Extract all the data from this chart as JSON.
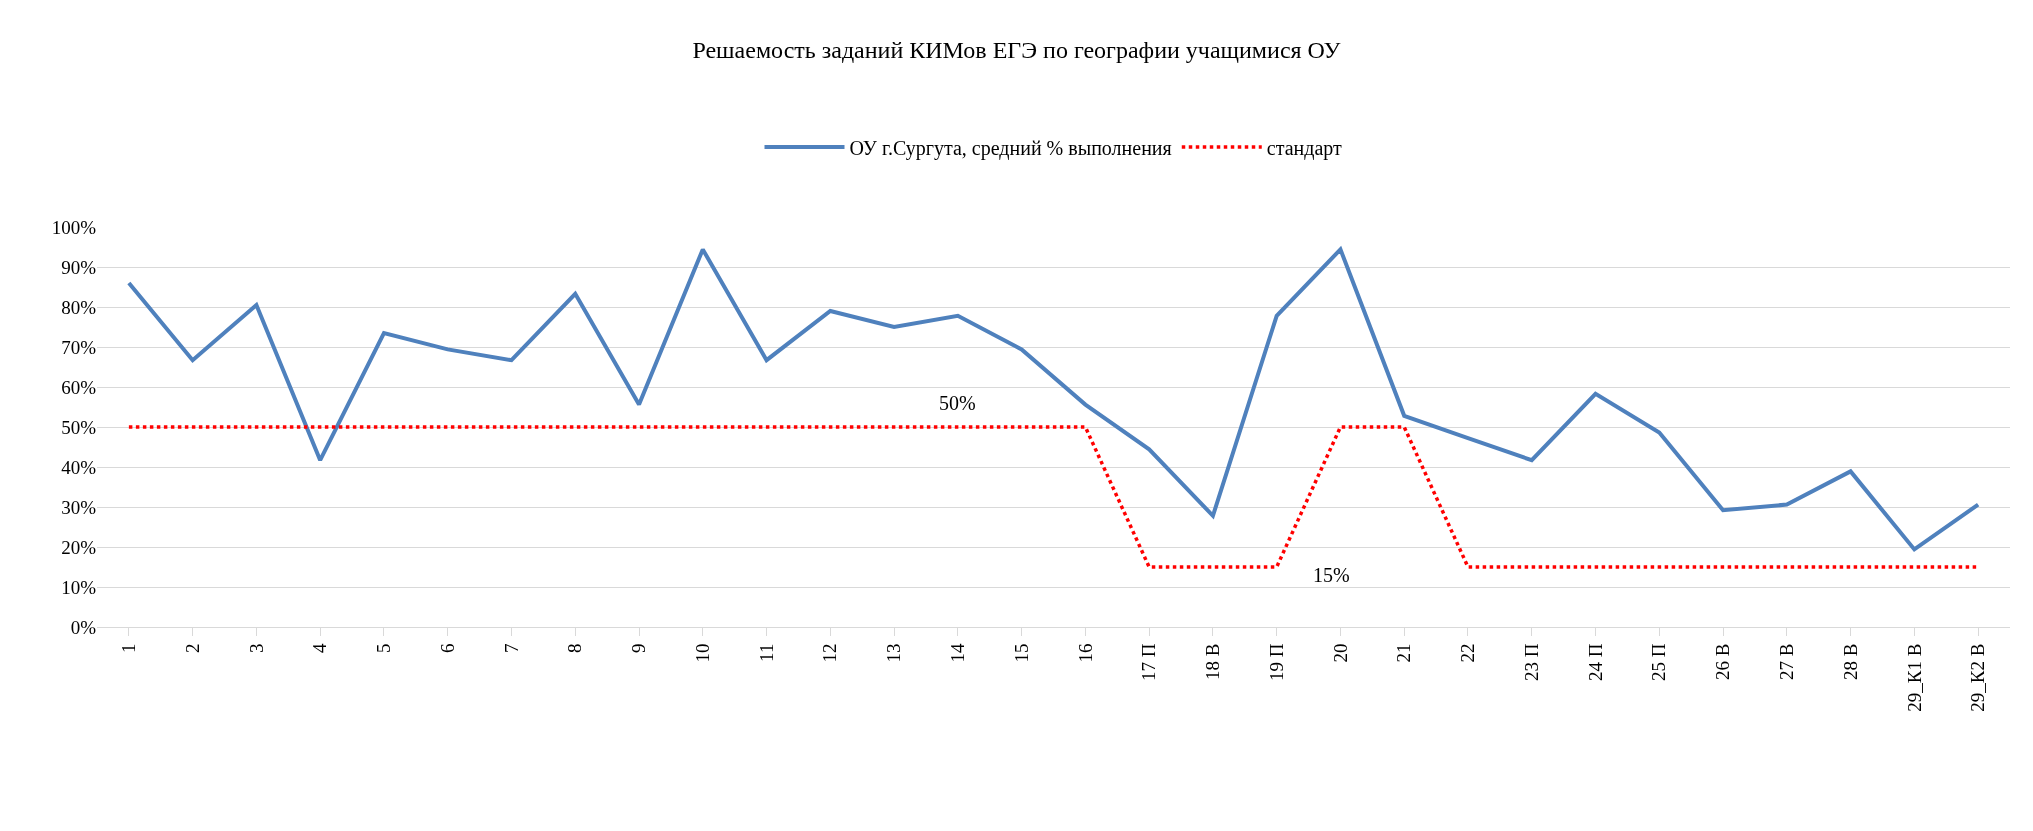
{
  "chart_data": {
    "type": "line",
    "title": "Решаемость заданий КИМов ЕГЭ по географии учащимися ОУ",
    "categories": [
      "1",
      "2",
      "3",
      "4",
      "5",
      "6",
      "7",
      "8",
      "9",
      "10",
      "11",
      "12",
      "13",
      "14",
      "15",
      "16",
      "17 П",
      "18 В",
      "19 П",
      "20",
      "21",
      "22",
      "23 П",
      "24 П",
      "25 П",
      "26 В",
      "27 В",
      "28 В",
      "29_К1 В",
      "29_К2 В"
    ],
    "series": [
      {
        "name": "ОУ г.Сургута, средний % выполнения",
        "color": "#4f81bd",
        "line_style": "solid",
        "values": [
          86,
          66.7,
          80.5,
          41.7,
          73.5,
          69.4,
          66.7,
          83.3,
          55.6,
          94.4,
          66.7,
          79,
          75,
          77.8,
          69.4,
          55.6,
          44.4,
          27.8,
          77.8,
          94.4,
          52.8,
          47.2,
          41.7,
          58.3,
          48.6,
          29.2,
          30.6,
          38.9,
          19.4,
          30.6
        ]
      },
      {
        "name": "стандарт",
        "color": "#ff0000",
        "line_style": "dotted",
        "values": [
          50,
          50,
          50,
          50,
          50,
          50,
          50,
          50,
          50,
          50,
          50,
          50,
          50,
          50,
          50,
          50,
          15,
          15,
          15,
          50,
          50,
          15,
          15,
          15,
          15,
          15,
          15,
          15,
          15,
          15
        ]
      }
    ],
    "ylim": [
      0,
      100
    ],
    "yticks": [
      {
        "value": 0,
        "label": "0%"
      },
      {
        "value": 10,
        "label": "10%"
      },
      {
        "value": 20,
        "label": "20%"
      },
      {
        "value": 30,
        "label": "30%"
      },
      {
        "value": 40,
        "label": "40%"
      },
      {
        "value": 50,
        "label": "50%"
      },
      {
        "value": 60,
        "label": "60%"
      },
      {
        "value": 70,
        "label": "70%"
      },
      {
        "value": 80,
        "label": "80%"
      },
      {
        "value": 90,
        "label": "90%"
      },
      {
        "value": 100,
        "label": "100%"
      }
    ],
    "annotations": [
      {
        "text": "50%",
        "x": "14",
        "y": 50
      },
      {
        "text": "15%",
        "x": "19 П",
        "y": 15
      }
    ],
    "grid": "y",
    "legend": "top",
    "marker": "none"
  }
}
